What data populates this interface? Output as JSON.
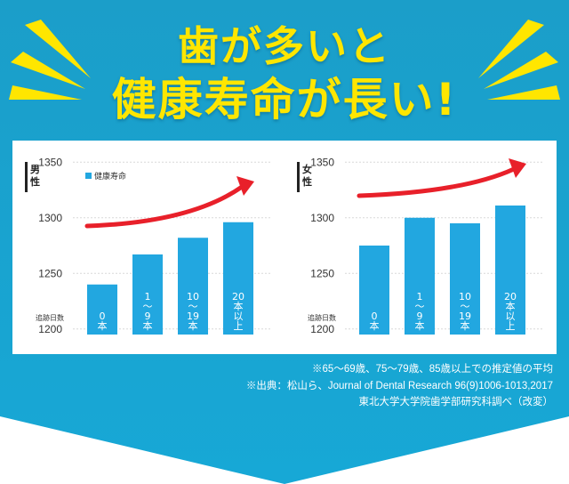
{
  "colors": {
    "background_top": "#1b9ec9",
    "background_bottom": "#17a8d6",
    "title": "#ffe600",
    "bar": "#22a7e0",
    "arrow": "#e8202a",
    "burst": "#ffe600"
  },
  "title": {
    "line1": "歯が多いと",
    "line2": "健康寿命が長い!"
  },
  "notes": {
    "line1": "※65〜69歳、75〜79歳、85歳以上での推定値の平均",
    "line2": "※出典：松山ら、Journal of Dental Research 96(9)1006-1013,2017",
    "line3": "東北大学大学院歯学部研究科調べ（改変）"
  },
  "chart_data": [
    {
      "type": "bar",
      "panel_label": "男性",
      "legend": "健康寿命",
      "legend_placement": "top-left",
      "xlabel": "追跡日数",
      "categories": [
        "0本",
        "1〜9本",
        "10〜19本",
        "20本以上"
      ],
      "category_labels": [
        [
          "0",
          "本"
        ],
        [
          "1",
          "〜",
          "9",
          "本"
        ],
        [
          "10",
          "〜",
          "19",
          "本"
        ],
        [
          "20",
          "本",
          "以",
          "上"
        ]
      ],
      "values": [
        1240,
        1267,
        1282,
        1296
      ],
      "yticks": [
        "1200",
        "1250",
        "1300",
        "1350"
      ],
      "ylim": [
        1195,
        1355
      ],
      "grid": true,
      "trend_arrow": true
    },
    {
      "type": "bar",
      "panel_label": "女性",
      "xlabel": "追跡日数",
      "categories": [
        "0本",
        "1〜9本",
        "10〜19本",
        "20本以上"
      ],
      "category_labels": [
        [
          "0",
          "本"
        ],
        [
          "1",
          "〜",
          "9",
          "本"
        ],
        [
          "10",
          "〜",
          "19",
          "本"
        ],
        [
          "20",
          "本",
          "以",
          "上"
        ]
      ],
      "values": [
        1275,
        1300,
        1295,
        1311
      ],
      "yticks": [
        "1200",
        "1250",
        "1300",
        "1350"
      ],
      "ylim": [
        1195,
        1355
      ],
      "grid": true,
      "trend_arrow": true
    }
  ]
}
